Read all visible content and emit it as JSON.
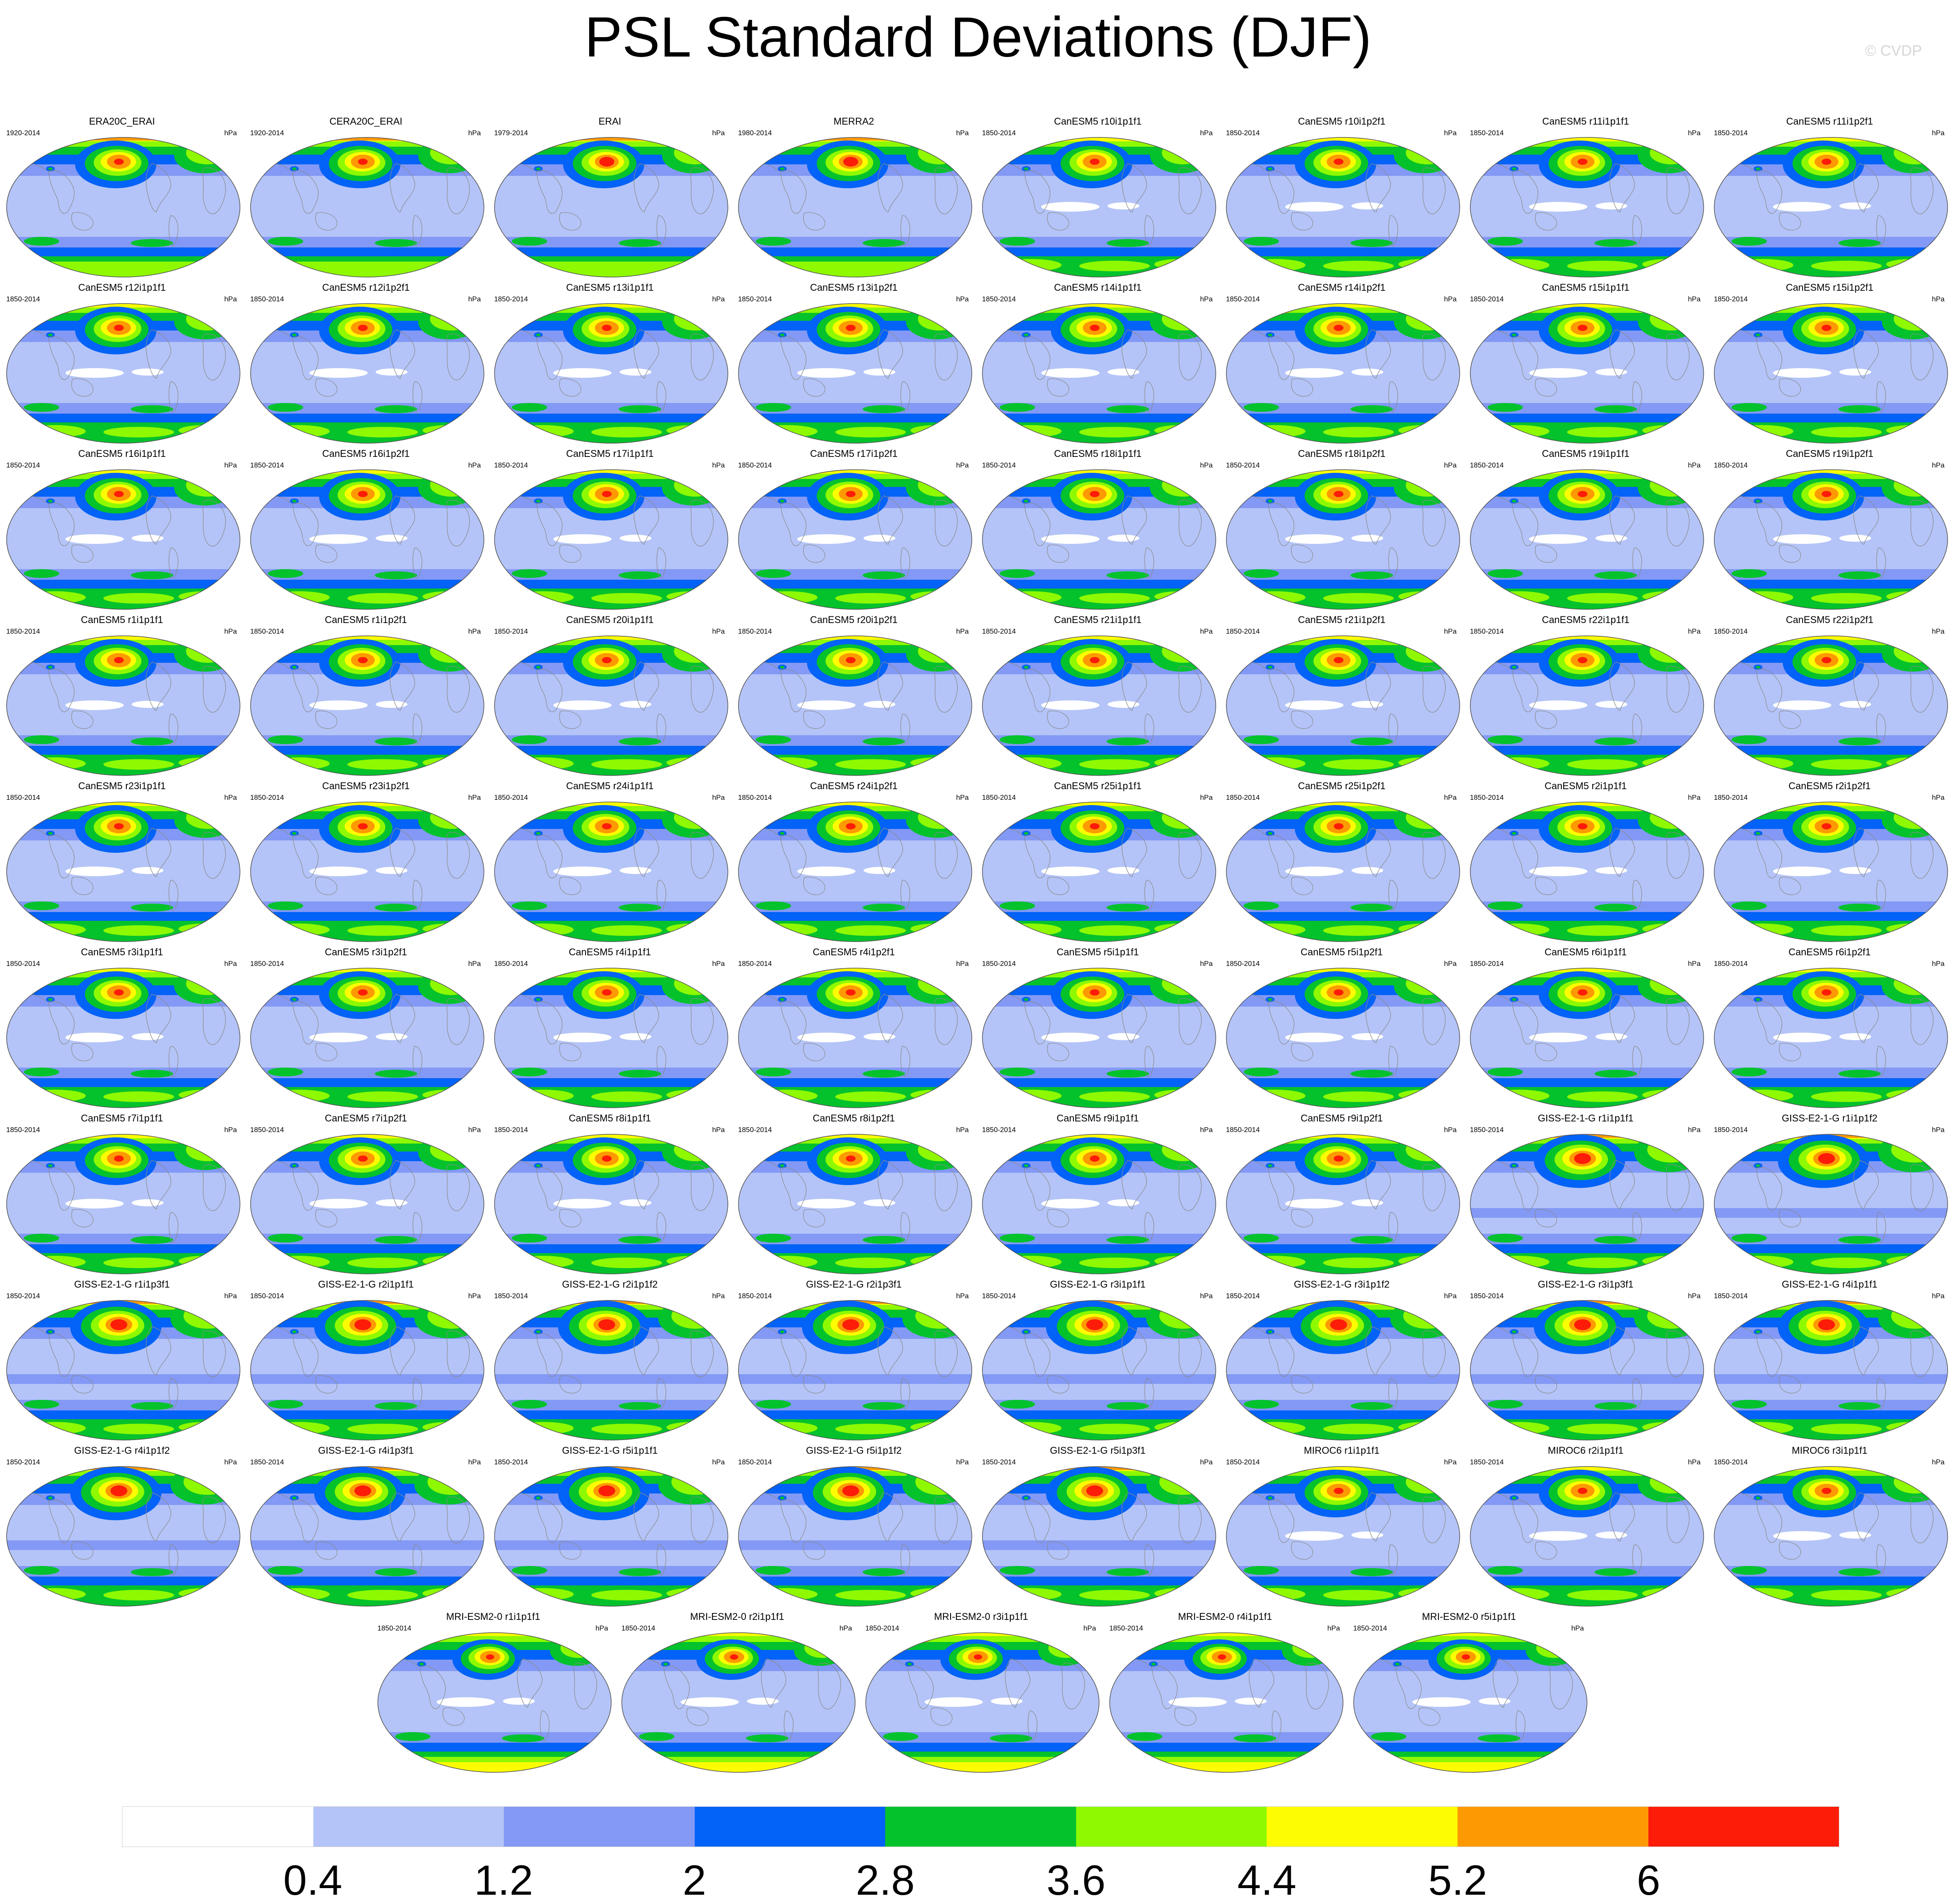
{
  "title": "PSL Standard Deviations (DJF)",
  "copyright": "© CVDP",
  "units": "hPa",
  "colors": {
    "levels": [
      "#ffffff",
      "#b4c4f8",
      "#8399f5",
      "#0362f7",
      "#04c22c",
      "#8ef901",
      "#fdfc03",
      "#fd9a03",
      "#fd1c08"
    ],
    "coastline": "#8a8a8a",
    "map_border": "#555555"
  },
  "colorbar": {
    "labels": [
      "0.4",
      "1.2",
      "2",
      "2.8",
      "3.6",
      "4.4",
      "5.2",
      "6"
    ]
  },
  "panels": [
    {
      "title": "ERA20C_ERAI",
      "years": "1920-2014"
    },
    {
      "title": "CERA20C_ERAI",
      "years": "1920-2014"
    },
    {
      "title": "ERAI",
      "years": "1979-2014"
    },
    {
      "title": "MERRA2",
      "years": "1980-2014"
    },
    {
      "title": "CanESM5 r10i1p1f1",
      "years": "1850-2014"
    },
    {
      "title": "CanESM5 r10i1p2f1",
      "years": "1850-2014"
    },
    {
      "title": "CanESM5 r11i1p1f1",
      "years": "1850-2014"
    },
    {
      "title": "CanESM5 r11i1p2f1",
      "years": "1850-2014"
    },
    {
      "title": "CanESM5 r12i1p1f1",
      "years": "1850-2014"
    },
    {
      "title": "CanESM5 r12i1p2f1",
      "years": "1850-2014"
    },
    {
      "title": "CanESM5 r13i1p1f1",
      "years": "1850-2014"
    },
    {
      "title": "CanESM5 r13i1p2f1",
      "years": "1850-2014"
    },
    {
      "title": "CanESM5 r14i1p1f1",
      "years": "1850-2014"
    },
    {
      "title": "CanESM5 r14i1p2f1",
      "years": "1850-2014"
    },
    {
      "title": "CanESM5 r15i1p1f1",
      "years": "1850-2014"
    },
    {
      "title": "CanESM5 r15i1p2f1",
      "years": "1850-2014"
    },
    {
      "title": "CanESM5 r16i1p1f1",
      "years": "1850-2014"
    },
    {
      "title": "CanESM5 r16i1p2f1",
      "years": "1850-2014"
    },
    {
      "title": "CanESM5 r17i1p1f1",
      "years": "1850-2014"
    },
    {
      "title": "CanESM5 r17i1p2f1",
      "years": "1850-2014"
    },
    {
      "title": "CanESM5 r18i1p1f1",
      "years": "1850-2014"
    },
    {
      "title": "CanESM5 r18i1p2f1",
      "years": "1850-2014"
    },
    {
      "title": "CanESM5 r19i1p1f1",
      "years": "1850-2014"
    },
    {
      "title": "CanESM5 r19i1p2f1",
      "years": "1850-2014"
    },
    {
      "title": "CanESM5 r1i1p1f1",
      "years": "1850-2014"
    },
    {
      "title": "CanESM5 r1i1p2f1",
      "years": "1850-2014"
    },
    {
      "title": "CanESM5 r20i1p1f1",
      "years": "1850-2014"
    },
    {
      "title": "CanESM5 r20i1p2f1",
      "years": "1850-2014"
    },
    {
      "title": "CanESM5 r21i1p1f1",
      "years": "1850-2014"
    },
    {
      "title": "CanESM5 r21i1p2f1",
      "years": "1850-2014"
    },
    {
      "title": "CanESM5 r22i1p1f1",
      "years": "1850-2014"
    },
    {
      "title": "CanESM5 r22i1p2f1",
      "years": "1850-2014"
    },
    {
      "title": "CanESM5 r23i1p1f1",
      "years": "1850-2014"
    },
    {
      "title": "CanESM5 r23i1p2f1",
      "years": "1850-2014"
    },
    {
      "title": "CanESM5 r24i1p1f1",
      "years": "1850-2014"
    },
    {
      "title": "CanESM5 r24i1p2f1",
      "years": "1850-2014"
    },
    {
      "title": "CanESM5 r25i1p1f1",
      "years": "1850-2014"
    },
    {
      "title": "CanESM5 r25i1p2f1",
      "years": "1850-2014"
    },
    {
      "title": "CanESM5 r2i1p1f1",
      "years": "1850-2014"
    },
    {
      "title": "CanESM5 r2i1p2f1",
      "years": "1850-2014"
    },
    {
      "title": "CanESM5 r3i1p1f1",
      "years": "1850-2014"
    },
    {
      "title": "CanESM5 r3i1p2f1",
      "years": "1850-2014"
    },
    {
      "title": "CanESM5 r4i1p1f1",
      "years": "1850-2014"
    },
    {
      "title": "CanESM5 r4i1p2f1",
      "years": "1850-2014"
    },
    {
      "title": "CanESM5 r5i1p1f1",
      "years": "1850-2014"
    },
    {
      "title": "CanESM5 r5i1p2f1",
      "years": "1850-2014"
    },
    {
      "title": "CanESM5 r6i1p1f1",
      "years": "1850-2014"
    },
    {
      "title": "CanESM5 r6i1p2f1",
      "years": "1850-2014"
    },
    {
      "title": "CanESM5 r7i1p1f1",
      "years": "1850-2014"
    },
    {
      "title": "CanESM5 r7i1p2f1",
      "years": "1850-2014"
    },
    {
      "title": "CanESM5 r8i1p1f1",
      "years": "1850-2014"
    },
    {
      "title": "CanESM5 r8i1p2f1",
      "years": "1850-2014"
    },
    {
      "title": "CanESM5 r9i1p1f1",
      "years": "1850-2014"
    },
    {
      "title": "CanESM5 r9i1p2f1",
      "years": "1850-2014"
    },
    {
      "title": "GISS-E2-1-G r1i1p1f1",
      "years": "1850-2014"
    },
    {
      "title": "GISS-E2-1-G r1i1p1f2",
      "years": "1850-2014"
    },
    {
      "title": "GISS-E2-1-G r1i1p3f1",
      "years": "1850-2014"
    },
    {
      "title": "GISS-E2-1-G r2i1p1f1",
      "years": "1850-2014"
    },
    {
      "title": "GISS-E2-1-G r2i1p1f2",
      "years": "1850-2014"
    },
    {
      "title": "GISS-E2-1-G r2i1p3f1",
      "years": "1850-2014"
    },
    {
      "title": "GISS-E2-1-G r3i1p1f1",
      "years": "1850-2014"
    },
    {
      "title": "GISS-E2-1-G r3i1p1f2",
      "years": "1850-2014"
    },
    {
      "title": "GISS-E2-1-G r3i1p3f1",
      "years": "1850-2014"
    },
    {
      "title": "GISS-E2-1-G r4i1p1f1",
      "years": "1850-2014"
    },
    {
      "title": "GISS-E2-1-G r4i1p1f2",
      "years": "1850-2014"
    },
    {
      "title": "GISS-E2-1-G r4i1p3f1",
      "years": "1850-2014"
    },
    {
      "title": "GISS-E2-1-G r5i1p1f1",
      "years": "1850-2014"
    },
    {
      "title": "GISS-E2-1-G r5i1p1f2",
      "years": "1850-2014"
    },
    {
      "title": "GISS-E2-1-G r5i1p3f1",
      "years": "1850-2014"
    },
    {
      "title": "MIROC6 r1i1p1f1",
      "years": "1850-2014"
    },
    {
      "title": "MIROC6 r2i1p1f1",
      "years": "1850-2014"
    },
    {
      "title": "MIROC6 r3i1p1f1",
      "years": "1850-2014"
    },
    {
      "title": "MRI-ESM2-0 r1i1p1f1",
      "years": "1850-2014"
    },
    {
      "title": "MRI-ESM2-0 r2i1p1f1",
      "years": "1850-2014"
    },
    {
      "title": "MRI-ESM2-0 r3i1p1f1",
      "years": "1850-2014"
    },
    {
      "title": "MRI-ESM2-0 r4i1p1f1",
      "years": "1850-2014"
    },
    {
      "title": "MRI-ESM2-0 r5i1p1f1",
      "years": "1850-2014"
    }
  ]
}
